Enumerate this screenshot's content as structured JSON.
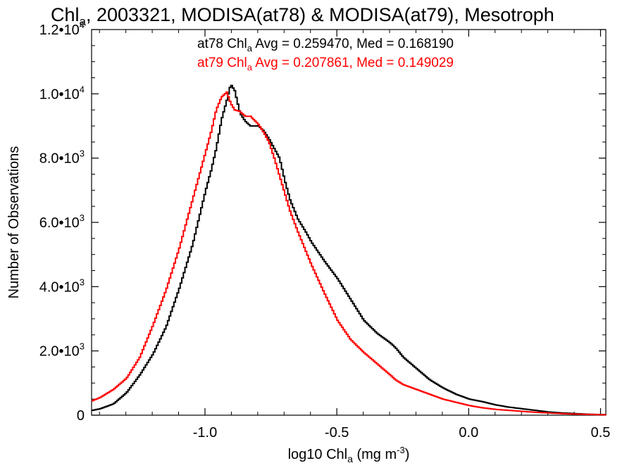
{
  "chart_data": {
    "type": "line",
    "title": {
      "prefix": "Chl",
      "sub": "a",
      "rest": ", 2003321, MODISA(at78) & MODISA(at79), Mesotroph"
    },
    "xlabel": {
      "prefix": "log10 Chl",
      "sub": "a",
      "mid": " (mg m",
      "sup": "-3",
      "suffix": ")"
    },
    "ylabel": "Number of Observations",
    "xlim": [
      -1.43,
      0.52
    ],
    "ylim": [
      0,
      12000
    ],
    "x_ticks": [
      {
        "value": -1.0,
        "label": "-1.0"
      },
      {
        "value": -0.5,
        "label": "-0.5"
      },
      {
        "value": 0.0,
        "label": "0.0"
      },
      {
        "value": 0.5,
        "label": "0.5"
      }
    ],
    "y_ticks": [
      {
        "value": 0,
        "mant": "0",
        "exp": ""
      },
      {
        "value": 2000,
        "mant": "2.0•10",
        "exp": "3"
      },
      {
        "value": 4000,
        "mant": "4.0•10",
        "exp": "3"
      },
      {
        "value": 6000,
        "mant": "6.0•10",
        "exp": "3"
      },
      {
        "value": 8000,
        "mant": "8.0•10",
        "exp": "3"
      },
      {
        "value": 10000,
        "mant": "1.0•10",
        "exp": "4"
      },
      {
        "value": 12000,
        "mant": "1.2•10",
        "exp": "4"
      }
    ],
    "grid": false,
    "series": [
      {
        "name": "at78",
        "color": "#000000",
        "stats": {
          "pre": "at78 Chl",
          "sub": "a",
          "post": " Avg = 0.259470, Med = 0.168190"
        },
        "x": [
          -1.43,
          -1.4,
          -1.35,
          -1.3,
          -1.25,
          -1.2,
          -1.15,
          -1.1,
          -1.05,
          -1.0,
          -0.98,
          -0.96,
          -0.94,
          -0.92,
          -0.905,
          -0.89,
          -0.87,
          -0.85,
          -0.83,
          -0.8,
          -0.78,
          -0.76,
          -0.74,
          -0.72,
          -0.7,
          -0.68,
          -0.65,
          -0.62,
          -0.6,
          -0.55,
          -0.5,
          -0.45,
          -0.4,
          -0.35,
          -0.3,
          -0.28,
          -0.25,
          -0.2,
          -0.15,
          -0.1,
          -0.05,
          0.0,
          0.05,
          0.1,
          0.15,
          0.2,
          0.25,
          0.3,
          0.35,
          0.4,
          0.45,
          0.5,
          0.52
        ],
        "y": [
          150,
          200,
          350,
          700,
          1250,
          1900,
          2750,
          3950,
          5300,
          7000,
          7600,
          8300,
          9200,
          9800,
          10300,
          10100,
          9400,
          9150,
          9000,
          9000,
          8850,
          8600,
          8300,
          8000,
          7300,
          6700,
          6100,
          5700,
          5400,
          4800,
          4250,
          3600,
          2950,
          2550,
          2250,
          2100,
          1800,
          1450,
          1100,
          850,
          650,
          500,
          420,
          320,
          250,
          200,
          150,
          100,
          70,
          50,
          30,
          20,
          10
        ]
      },
      {
        "name": "at79",
        "color": "#ff0000",
        "stats": {
          "pre": "at79 Chl",
          "sub": "a",
          "post": " Avg = 0.207861, Med = 0.149029"
        },
        "x": [
          -1.43,
          -1.4,
          -1.35,
          -1.3,
          -1.25,
          -1.2,
          -1.15,
          -1.1,
          -1.05,
          -1.0,
          -0.98,
          -0.96,
          -0.94,
          -0.92,
          -0.905,
          -0.89,
          -0.87,
          -0.85,
          -0.83,
          -0.8,
          -0.78,
          -0.76,
          -0.74,
          -0.72,
          -0.7,
          -0.68,
          -0.65,
          -0.62,
          -0.6,
          -0.55,
          -0.5,
          -0.45,
          -0.4,
          -0.35,
          -0.3,
          -0.28,
          -0.25,
          -0.2,
          -0.15,
          -0.1,
          -0.05,
          0.0,
          0.05,
          0.1,
          0.15,
          0.2,
          0.25,
          0.3,
          0.35,
          0.4,
          0.45,
          0.5,
          0.52
        ],
        "y": [
          450,
          550,
          800,
          1150,
          1800,
          2800,
          3900,
          5200,
          6700,
          8200,
          8800,
          9500,
          9900,
          10050,
          9700,
          9500,
          9450,
          9300,
          9300,
          9050,
          8800,
          8500,
          8000,
          7450,
          6900,
          6350,
          5700,
          5100,
          4700,
          3800,
          2950,
          2350,
          1950,
          1600,
          1250,
          1100,
          950,
          800,
          650,
          500,
          400,
          300,
          230,
          180,
          150,
          120,
          90,
          70,
          50,
          35,
          25,
          15,
          10
        ]
      }
    ]
  }
}
